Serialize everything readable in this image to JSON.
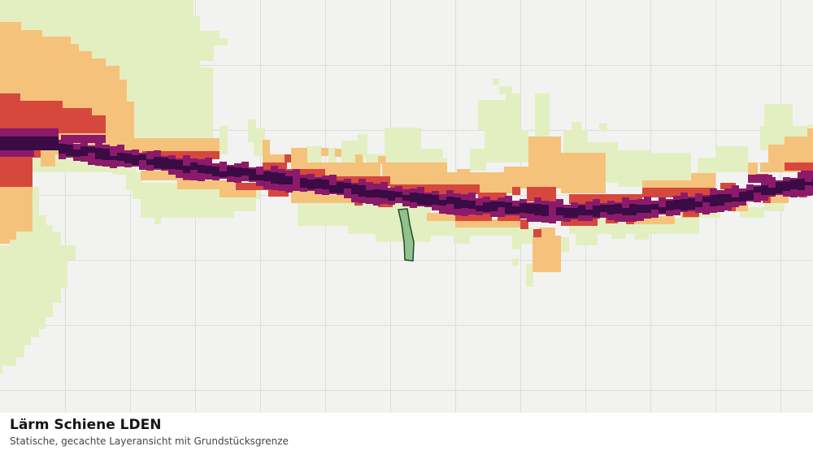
{
  "caption": {
    "title": "Lärm Schiene LDEN",
    "subtitle": "Statische, gecachte Layeransicht mit Grundstücksgrenze"
  },
  "map": {
    "colors": {
      "background": "#f2f3f1",
      "grid_line": "#dcdedb",
      "noise_class_1": "#e3efc1",
      "noise_class_2": "#f5c27c",
      "noise_class_3": "#d6483e",
      "noise_class_4": "#8b1a6a",
      "noise_class_5": "#3a0b44",
      "parcel_fill": "#92c08e",
      "parcel_stroke": "#1e4a2b"
    }
  }
}
